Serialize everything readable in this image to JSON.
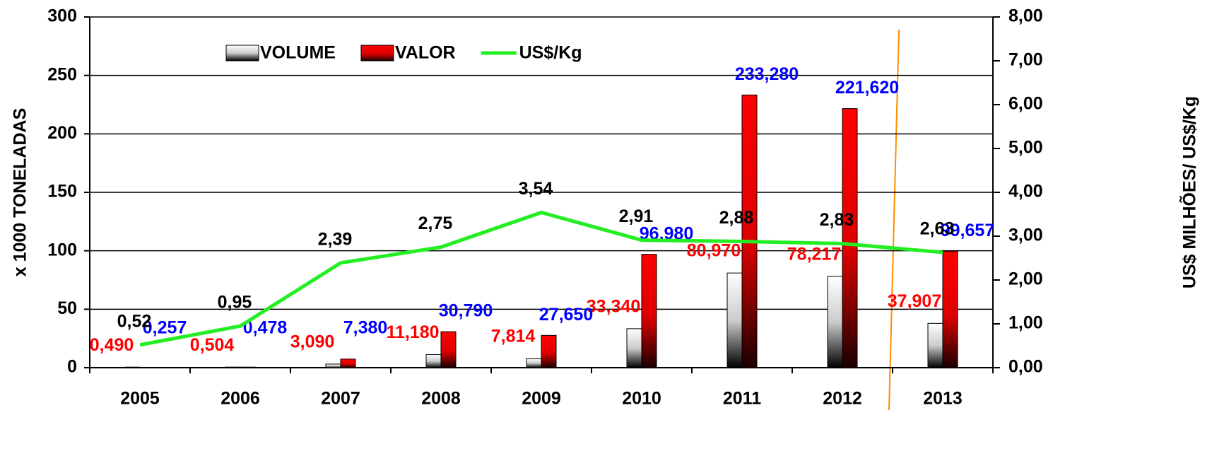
{
  "chart_data": {
    "type": "bar",
    "ylabel": "x 1000 TONELADAS",
    "y2label": "US$ MILHÕES/ US$/Kg",
    "categories": [
      "2005",
      "2006",
      "2007",
      "2008",
      "2009",
      "2010",
      "2011",
      "2012",
      "2013"
    ],
    "series": [
      {
        "name": "VOLUME",
        "color": "#ffffff",
        "label_color": "#ff0000",
        "values": [
          0.49,
          0.504,
          3.09,
          11.18,
          7.814,
          33.34,
          80.97,
          78.217,
          37.907
        ],
        "value_labels": [
          "0,490",
          "0,504",
          "3,090",
          "11,180",
          "7,814",
          "33,340",
          "80,970",
          "78,217",
          "37,907"
        ]
      },
      {
        "name": "VALOR",
        "color": "#ff0000",
        "label_color": "#0000ff",
        "values": [
          0.257,
          0.478,
          7.38,
          30.79,
          27.65,
          96.98,
          233.28,
          221.62,
          99.657
        ],
        "value_labels": [
          "0,257",
          "0,478",
          "7,380",
          "30,790",
          "27,650",
          "96,980",
          "233,280",
          "221,620",
          "99,657"
        ]
      },
      {
        "name": "US$/Kg",
        "type": "line",
        "axis": "y2",
        "color": "#22ee22",
        "label_color": "#000000",
        "values": [
          0.52,
          0.95,
          2.39,
          2.75,
          3.54,
          2.91,
          2.88,
          2.83,
          2.63
        ],
        "value_labels": [
          "0,52",
          "0,95",
          "2,39",
          "2,75",
          "3,54",
          "2,91",
          "2,88",
          "2,83",
          "2,63"
        ]
      }
    ],
    "ylim": [
      0,
      300
    ],
    "yticks": [
      0,
      50,
      100,
      150,
      200,
      250,
      300
    ],
    "y2lim": [
      0,
      8
    ],
    "y2ticks": [
      {
        "value": 0,
        "label": "0,00"
      },
      {
        "value": 1,
        "label": "1,00"
      },
      {
        "value": 2,
        "label": "2,00"
      },
      {
        "value": 3,
        "label": "3,00"
      },
      {
        "value": 4,
        "label": "4,00"
      },
      {
        "value": 5,
        "label": "5,00"
      },
      {
        "value": 6,
        "label": "6,00"
      },
      {
        "value": 7,
        "label": "7,00"
      },
      {
        "value": 8,
        "label": "8,00"
      }
    ],
    "grid": true,
    "legend": "top"
  }
}
